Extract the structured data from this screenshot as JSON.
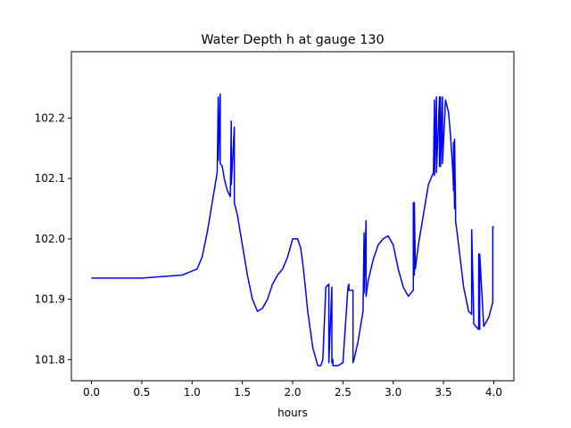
{
  "chart_data": {
    "type": "line",
    "title": "Water Depth h at gauge 130",
    "xlabel": "hours",
    "ylabel": "",
    "xlim": [
      -0.2,
      4.2
    ],
    "ylim": [
      101.765,
      102.31
    ],
    "xticks": [
      0.0,
      0.5,
      1.0,
      1.5,
      2.0,
      2.5,
      3.0,
      3.5,
      4.0
    ],
    "xtick_labels": [
      "0.0",
      "0.5",
      "1.0",
      "1.5",
      "2.0",
      "2.5",
      "3.0",
      "3.5",
      "4.0"
    ],
    "yticks": [
      101.8,
      101.9,
      102.0,
      102.1,
      102.2
    ],
    "ytick_labels": [
      "101.8",
      "101.9",
      "102.0",
      "102.1",
      "102.2"
    ],
    "grid": false,
    "series": [
      {
        "color": "#0000ff",
        "x": [
          0.0,
          0.5,
          0.9,
          1.05,
          1.1,
          1.15,
          1.2,
          1.25,
          1.26,
          1.26,
          1.28,
          1.28,
          1.3,
          1.32,
          1.35,
          1.38,
          1.39,
          1.39,
          1.42,
          1.42,
          1.45,
          1.5,
          1.55,
          1.6,
          1.65,
          1.7,
          1.75,
          1.8,
          1.85,
          1.9,
          1.95,
          2.0,
          2.05,
          2.08,
          2.1,
          2.12,
          2.15,
          2.2,
          2.25,
          2.28,
          2.3,
          2.33,
          2.36,
          2.36,
          2.39,
          2.39,
          2.4,
          2.4,
          2.45,
          2.5,
          2.55,
          2.56,
          2.56,
          2.6,
          2.6,
          2.61,
          2.65,
          2.7,
          2.71,
          2.71,
          2.73,
          2.73,
          2.75,
          2.8,
          2.85,
          2.9,
          2.95,
          3.0,
          3.05,
          3.1,
          3.15,
          3.2,
          3.2,
          3.21,
          3.21,
          3.22,
          3.25,
          3.3,
          3.35,
          3.4,
          3.41,
          3.41,
          3.43,
          3.43,
          3.46,
          3.46,
          3.47,
          3.47,
          3.49,
          3.49,
          3.52,
          3.55,
          3.57,
          3.59,
          3.6,
          3.6,
          3.61,
          3.61,
          3.62,
          3.62,
          3.65,
          3.7,
          3.75,
          3.78,
          3.78,
          3.8,
          3.8,
          3.82,
          3.85,
          3.85,
          3.86,
          3.86,
          3.9,
          3.95,
          3.99,
          3.99,
          4.0
        ],
        "y": [
          101.935,
          101.935,
          101.94,
          101.95,
          101.97,
          102.01,
          102.06,
          102.11,
          102.235,
          102.13,
          102.24,
          102.125,
          102.12,
          102.1,
          102.08,
          102.07,
          102.195,
          102.09,
          102.185,
          102.06,
          102.04,
          101.99,
          101.94,
          101.9,
          101.88,
          101.885,
          101.9,
          101.925,
          101.94,
          101.95,
          101.97,
          102.0,
          102.0,
          101.985,
          101.96,
          101.93,
          101.88,
          101.82,
          101.79,
          101.79,
          101.8,
          101.92,
          101.925,
          101.795,
          101.92,
          101.795,
          101.8,
          101.79,
          101.79,
          101.795,
          101.92,
          101.925,
          101.915,
          101.915,
          101.795,
          101.8,
          101.83,
          101.88,
          102.01,
          101.91,
          102.03,
          101.905,
          101.93,
          101.965,
          101.99,
          102.0,
          102.005,
          101.99,
          101.95,
          101.92,
          101.905,
          101.915,
          102.06,
          101.94,
          102.06,
          101.95,
          101.99,
          102.04,
          102.09,
          102.11,
          102.23,
          102.105,
          102.235,
          102.11,
          102.235,
          102.12,
          102.235,
          102.12,
          102.235,
          102.125,
          102.23,
          102.21,
          102.17,
          102.12,
          102.08,
          102.16,
          102.05,
          102.165,
          102.05,
          102.03,
          101.99,
          101.92,
          101.88,
          101.875,
          102.015,
          101.875,
          101.86,
          101.855,
          101.85,
          101.975,
          101.85,
          101.975,
          101.855,
          101.87,
          101.895,
          102.02,
          102.02
        ]
      }
    ]
  }
}
